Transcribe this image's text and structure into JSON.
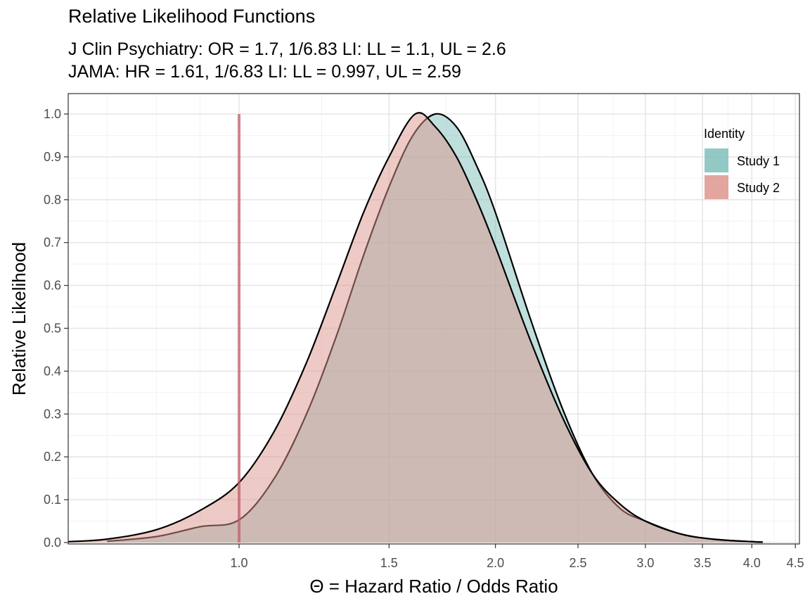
{
  "chart_data": {
    "type": "area",
    "title": "Relative Likelihood Functions",
    "subtitle_lines": [
      "J Clin Psychiatry: OR = 1.7, 1/6.83 LI: LL = 1.1, UL = 2.6",
      "JAMA: HR = 1.61, 1/6.83 LI: LL = 0.997, UL = 2.59"
    ],
    "xlabel": "Θ = Hazard Ratio / Odds Ratio",
    "ylabel": "Relative Likelihood",
    "x_scale": "log",
    "xlim": [
      0.63,
      4.55
    ],
    "ylim": [
      0,
      1
    ],
    "x_ticks": [
      {
        "value": 1.0,
        "label": "1.0"
      },
      {
        "value": 1.5,
        "label": "1.5"
      },
      {
        "value": 2.0,
        "label": "2.0"
      },
      {
        "value": 2.5,
        "label": "2.5"
      },
      {
        "value": 3.0,
        "label": "3.0"
      },
      {
        "value": 3.5,
        "label": "3.5"
      },
      {
        "value": 4.0,
        "label": "4.0"
      },
      {
        "value": 4.5,
        "label": "4.5"
      }
    ],
    "y_ticks": [
      {
        "value": 0.0,
        "label": "0.0"
      },
      {
        "value": 0.1,
        "label": "0.1"
      },
      {
        "value": 0.2,
        "label": "0.2"
      },
      {
        "value": 0.3,
        "label": "0.3"
      },
      {
        "value": 0.4,
        "label": "0.4"
      },
      {
        "value": 0.5,
        "label": "0.5"
      },
      {
        "value": 0.6,
        "label": "0.6"
      },
      {
        "value": 0.7,
        "label": "0.7"
      },
      {
        "value": 0.8,
        "label": "0.8"
      },
      {
        "value": 0.9,
        "label": "0.9"
      },
      {
        "value": 1.0,
        "label": "1.0"
      }
    ],
    "grid": true,
    "reference_line": {
      "x": 1.0,
      "y_range": [
        0,
        1
      ],
      "color": "#c0606a"
    },
    "legend": {
      "title": "Identity",
      "position": "top-right"
    },
    "series": [
      {
        "name": "Study 1",
        "color": "#80bfbb",
        "x": [
          0.7,
          0.8,
          0.9,
          1.0,
          1.1,
          1.2,
          1.3,
          1.4,
          1.5,
          1.6,
          1.7,
          1.8,
          1.9,
          2.0,
          2.2,
          2.4,
          2.6,
          2.8,
          3.0,
          3.3,
          3.6,
          4.0,
          4.12
        ],
        "y": [
          0.003,
          0.014,
          0.037,
          0.053,
          0.15,
          0.3,
          0.48,
          0.67,
          0.83,
          0.95,
          1.0,
          0.97,
          0.88,
          0.77,
          0.52,
          0.31,
          0.16,
          0.08,
          0.05,
          0.02,
          0.008,
          0.002,
          0.001
        ]
      },
      {
        "name": "Study 2",
        "color": "#dd968e",
        "x": [
          0.63,
          0.7,
          0.8,
          0.9,
          1.0,
          1.1,
          1.2,
          1.3,
          1.4,
          1.5,
          1.61,
          1.7,
          1.8,
          1.9,
          2.0,
          2.2,
          2.4,
          2.6,
          2.8,
          3.0,
          3.3,
          3.6,
          4.0,
          4.12
        ],
        "y": [
          0.002,
          0.008,
          0.03,
          0.075,
          0.14,
          0.26,
          0.42,
          0.6,
          0.77,
          0.9,
          1.0,
          0.97,
          0.9,
          0.8,
          0.69,
          0.47,
          0.29,
          0.16,
          0.09,
          0.05,
          0.02,
          0.008,
          0.002,
          0.001
        ]
      }
    ]
  }
}
